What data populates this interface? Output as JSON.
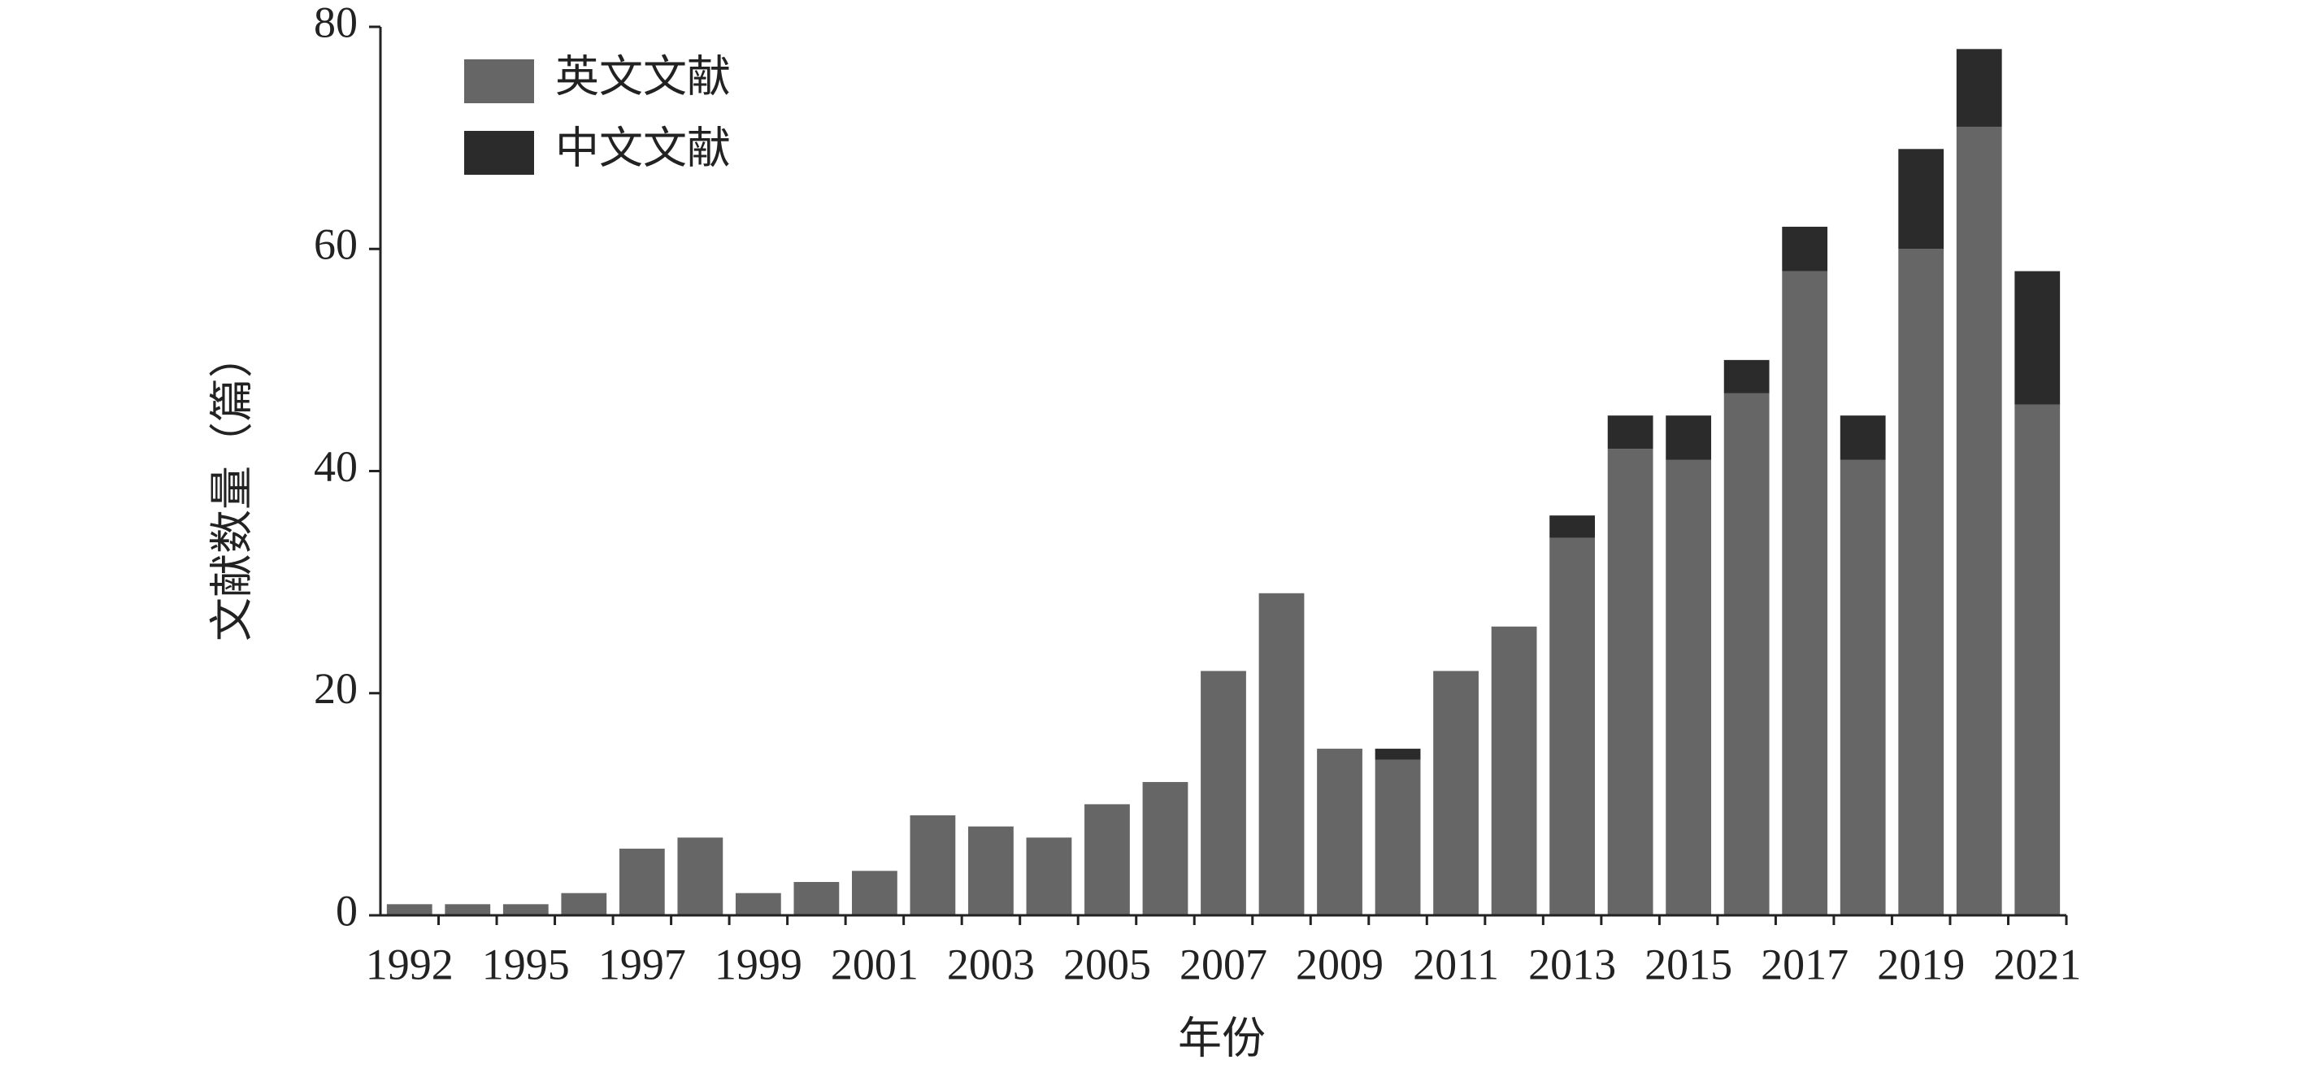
{
  "chart_data": {
    "type": "stacked_bar",
    "categories": [
      "1992",
      null,
      "1995",
      null,
      "1997",
      null,
      "1999",
      null,
      "2001",
      null,
      "2003",
      null,
      "2005",
      null,
      "2007",
      null,
      "2009",
      null,
      "2011",
      null,
      "2013",
      null,
      "2015",
      null,
      "2017",
      null,
      "2019",
      null,
      "2021"
    ],
    "series": [
      {
        "name": "英文文献",
        "color": "#666666",
        "values": [
          1,
          1,
          1,
          2,
          6,
          7,
          2,
          3,
          4,
          9,
          8,
          7,
          10,
          12,
          22,
          29,
          15,
          14,
          22,
          26,
          34,
          42,
          41,
          47,
          58,
          41,
          60,
          71,
          46
        ]
      },
      {
        "name": "中文文献",
        "color": "#2b2b2b",
        "values": [
          0,
          0,
          0,
          0,
          0,
          0,
          0,
          0,
          0,
          0,
          0,
          0,
          0,
          0,
          0,
          0,
          0,
          1,
          0,
          0,
          2,
          3,
          4,
          3,
          4,
          4,
          9,
          7,
          12
        ]
      }
    ],
    "x_label": "年份",
    "y_label": "文献数量（篇）",
    "ylim": [
      0,
      80
    ],
    "yticks": [
      0,
      20,
      40,
      60,
      80
    ]
  }
}
